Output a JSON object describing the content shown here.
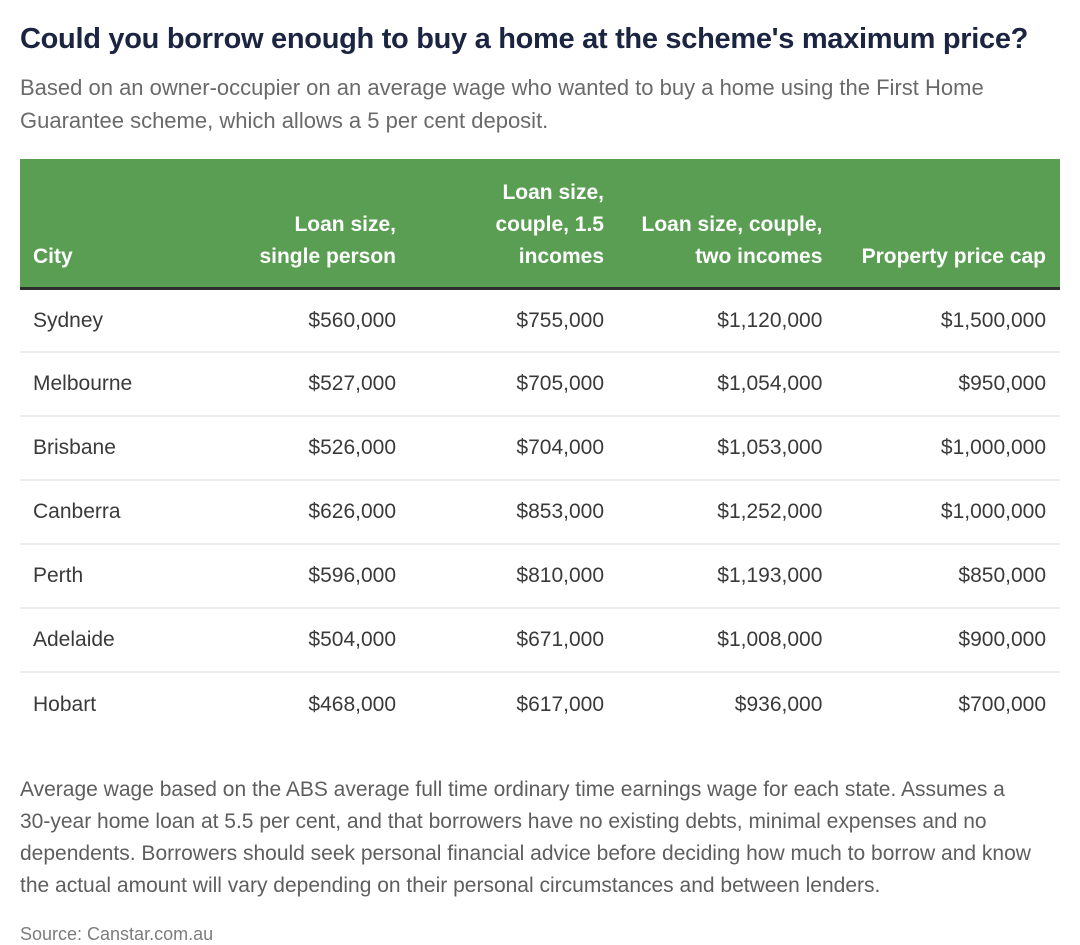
{
  "title": "Could you borrow enough to buy a home at the scheme's maximum price?",
  "subtitle": "Based on an owner-occupier on an average wage who wanted to buy a home using the First Home Guarantee scheme, which allows a 5 per cent deposit.",
  "colors": {
    "header_bg": "#5a9e53",
    "header_text": "#ffffff",
    "header_border": "#2e2e2e",
    "title_text": "#1b2441",
    "body_text": "#3a3a3a",
    "muted_text": "#6a6a6a",
    "row_divider": "#ececec"
  },
  "table": {
    "columns": [
      "City",
      "Loan size, single person",
      "Loan size, couple, 1.5 incomes",
      "Loan size, couple, two incomes",
      "Property price cap"
    ],
    "rows": [
      {
        "city": "Sydney",
        "values": [
          "$560,000",
          "$755,000",
          "$1,120,000",
          "$1,500,000"
        ]
      },
      {
        "city": "Melbourne",
        "values": [
          "$527,000",
          "$705,000",
          "$1,054,000",
          "$950,000"
        ]
      },
      {
        "city": "Brisbane",
        "values": [
          "$526,000",
          "$704,000",
          "$1,053,000",
          "$1,000,000"
        ]
      },
      {
        "city": "Canberra",
        "values": [
          "$626,000",
          "$853,000",
          "$1,252,000",
          "$1,000,000"
        ]
      },
      {
        "city": "Perth",
        "values": [
          "$596,000",
          "$810,000",
          "$1,193,000",
          "$850,000"
        ]
      },
      {
        "city": "Adelaide",
        "values": [
          "$504,000",
          "$671,000",
          "$1,008,000",
          "$900,000"
        ]
      },
      {
        "city": "Hobart",
        "values": [
          "$468,000",
          "$617,000",
          "$936,000",
          "$700,000"
        ]
      }
    ]
  },
  "footnote": "Average wage based on the ABS average full time ordinary time earnings wage for each state. Assumes a 30-year home loan at 5.5 per cent, and that borrowers have no existing debts, minimal expenses and no dependents. Borrowers should seek personal financial advice before deciding how much to borrow and know the actual amount will vary depending on their personal circumstances and between lenders.",
  "source": "Source: Canstar.com.au",
  "chart_data": {
    "type": "table",
    "title": "Could you borrow enough to buy a home at the scheme's maximum price?",
    "columns": [
      "City",
      "Loan size, single person",
      "Loan size, couple, 1.5 incomes",
      "Loan size, couple, two incomes",
      "Property price cap"
    ],
    "rows": [
      [
        "Sydney",
        560000,
        755000,
        1120000,
        1500000
      ],
      [
        "Melbourne",
        527000,
        705000,
        1054000,
        950000
      ],
      [
        "Brisbane",
        526000,
        704000,
        1053000,
        1000000
      ],
      [
        "Canberra",
        626000,
        853000,
        1252000,
        1000000
      ],
      [
        "Perth",
        596000,
        810000,
        1193000,
        850000
      ],
      [
        "Adelaide",
        504000,
        671000,
        1008000,
        900000
      ],
      [
        "Hobart",
        468000,
        617000,
        936000,
        700000
      ]
    ],
    "units": "AUD",
    "source": "Canstar.com.au"
  }
}
